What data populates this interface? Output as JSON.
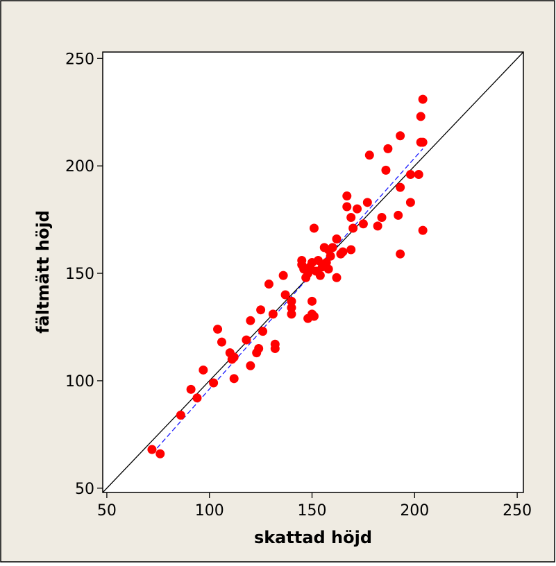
{
  "chart_data": {
    "type": "scatter",
    "xlabel": "skattad höjd",
    "ylabel": "fältmätt höjd",
    "xlim": [
      48,
      253
    ],
    "ylim": [
      48,
      253
    ],
    "xticks": [
      50,
      100,
      150,
      200,
      250
    ],
    "yticks": [
      50,
      100,
      150,
      200,
      250
    ],
    "grid": false,
    "reference_line": "y = x",
    "fit_line": {
      "from": [
        72,
        66
      ],
      "to": [
        204,
        208
      ]
    },
    "colors": {
      "points": "#ff0000",
      "reference": "#000000",
      "fit": "#1a1aff",
      "background": "#efebe2",
      "plot": "#ffffff"
    },
    "points": [
      [
        72,
        68
      ],
      [
        76,
        66
      ],
      [
        86,
        84
      ],
      [
        91,
        96
      ],
      [
        94,
        92
      ],
      [
        97,
        105
      ],
      [
        102,
        99
      ],
      [
        104,
        124
      ],
      [
        106,
        118
      ],
      [
        110,
        113
      ],
      [
        111,
        110
      ],
      [
        112,
        111
      ],
      [
        112,
        101
      ],
      [
        118,
        119
      ],
      [
        120,
        107
      ],
      [
        120,
        128
      ],
      [
        123,
        113
      ],
      [
        124,
        115
      ],
      [
        125,
        133
      ],
      [
        126,
        123
      ],
      [
        129,
        145
      ],
      [
        131,
        131
      ],
      [
        132,
        117
      ],
      [
        132,
        115
      ],
      [
        136,
        149
      ],
      [
        137,
        140
      ],
      [
        140,
        137
      ],
      [
        140,
        134
      ],
      [
        140,
        131
      ],
      [
        145,
        156
      ],
      [
        145,
        154
      ],
      [
        146,
        152
      ],
      [
        147,
        148
      ],
      [
        148,
        150
      ],
      [
        148,
        129
      ],
      [
        149,
        153
      ],
      [
        150,
        155
      ],
      [
        150,
        137
      ],
      [
        150,
        131
      ],
      [
        151,
        130
      ],
      [
        151,
        171
      ],
      [
        152,
        151
      ],
      [
        153,
        156
      ],
      [
        154,
        149
      ],
      [
        155,
        153
      ],
      [
        156,
        162
      ],
      [
        157,
        155
      ],
      [
        158,
        161
      ],
      [
        158,
        152
      ],
      [
        159,
        158
      ],
      [
        160,
        162
      ],
      [
        162,
        166
      ],
      [
        162,
        148
      ],
      [
        164,
        159
      ],
      [
        165,
        160
      ],
      [
        167,
        181
      ],
      [
        167,
        186
      ],
      [
        169,
        176
      ],
      [
        169,
        161
      ],
      [
        170,
        171
      ],
      [
        172,
        180
      ],
      [
        175,
        173
      ],
      [
        177,
        183
      ],
      [
        178,
        205
      ],
      [
        182,
        172
      ],
      [
        184,
        176
      ],
      [
        186,
        198
      ],
      [
        187,
        208
      ],
      [
        192,
        177
      ],
      [
        193,
        159
      ],
      [
        193,
        190
      ],
      [
        193,
        214
      ],
      [
        198,
        196
      ],
      [
        198,
        183
      ],
      [
        202,
        196
      ],
      [
        203,
        211
      ],
      [
        203,
        223
      ],
      [
        204,
        231
      ],
      [
        204,
        211
      ],
      [
        204,
        170
      ]
    ]
  }
}
